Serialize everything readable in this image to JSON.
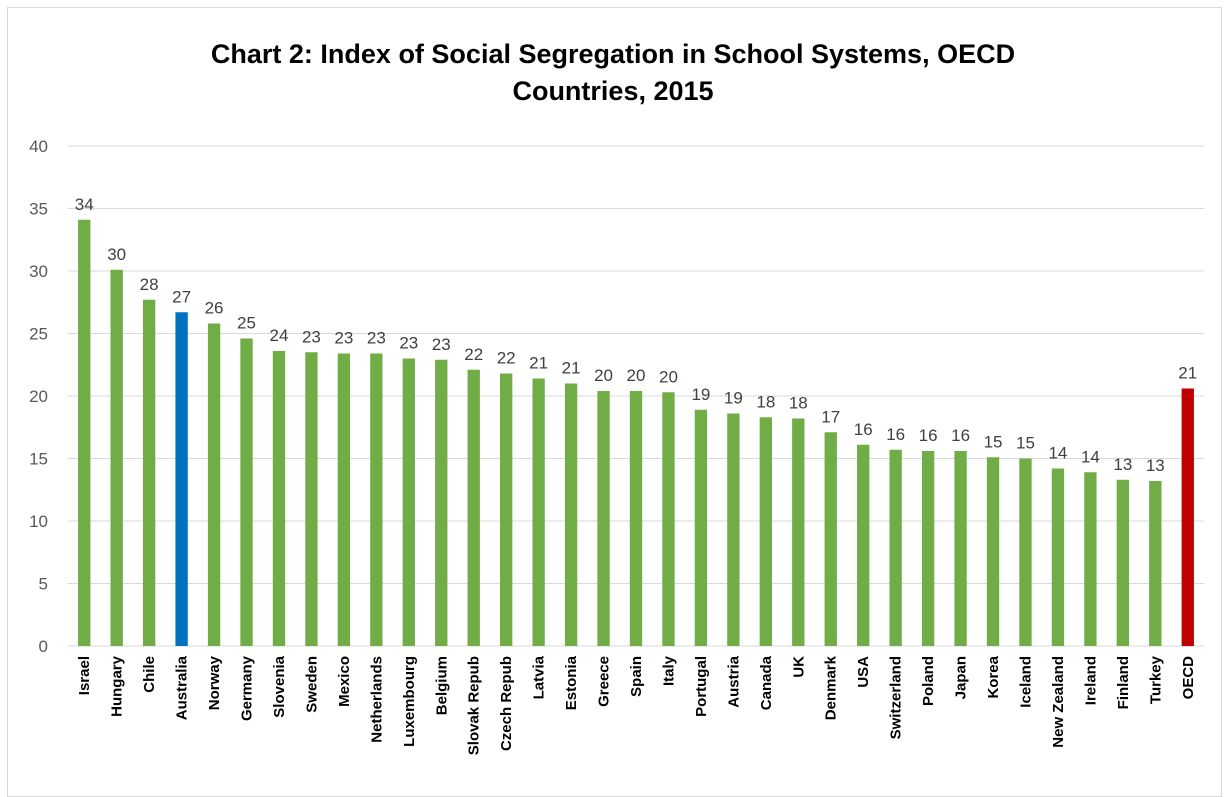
{
  "chart_data": {
    "type": "bar",
    "title_line1": "Chart 2: Index of Social Segregation in School Systems, OECD",
    "title_line2": "Countries, 2015",
    "xlabel": "",
    "ylabel": "",
    "ylim": [
      0,
      40
    ],
    "yticks": [
      0,
      5,
      10,
      15,
      20,
      25,
      30,
      35,
      40
    ],
    "grid": true,
    "legend": "none",
    "categories": [
      "Israel",
      "Hungary",
      "Chile",
      "Australia",
      "Norway",
      "Germany",
      "Slovenia",
      "Sweden",
      "Mexico",
      "Netherlands",
      "Luxembourg",
      "Belgium",
      "Slovak Repub",
      "Czech Repub",
      "Latvia",
      "Estonia",
      "Greece",
      "Spain",
      "Italy",
      "Portugal",
      "Austria",
      "Canada",
      "UK",
      "Denmark",
      "USA",
      "Switzerland",
      "Poland",
      "Japan",
      "Korea",
      "Iceland",
      "New Zealand",
      "Ireland",
      "Finland",
      "Turkey",
      "OECD"
    ],
    "values": [
      34.1,
      30.1,
      27.7,
      26.7,
      25.8,
      24.6,
      23.6,
      23.5,
      23.4,
      23.4,
      23.0,
      22.9,
      22.1,
      21.8,
      21.4,
      21.0,
      20.4,
      20.4,
      20.3,
      18.9,
      18.6,
      18.3,
      18.2,
      17.1,
      16.1,
      15.7,
      15.6,
      15.6,
      15.1,
      15.0,
      14.2,
      13.9,
      13.3,
      13.2,
      20.6
    ],
    "data_labels": [
      "34",
      "30",
      "28",
      "27",
      "26",
      "25",
      "24",
      "23",
      "23",
      "23",
      "23",
      "23",
      "22",
      "22",
      "21",
      "21",
      "20",
      "20",
      "20",
      "19",
      "19",
      "18",
      "18",
      "17",
      "16",
      "16",
      "16",
      "16",
      "15",
      "15",
      "14",
      "14",
      "13",
      "13",
      "21"
    ],
    "colors": {
      "default": "#70ad47",
      "highlight": "#0070c0",
      "average": "#c00000",
      "grid": "#d9d9d9"
    },
    "highlight_category": "Australia",
    "average_category": "OECD"
  }
}
